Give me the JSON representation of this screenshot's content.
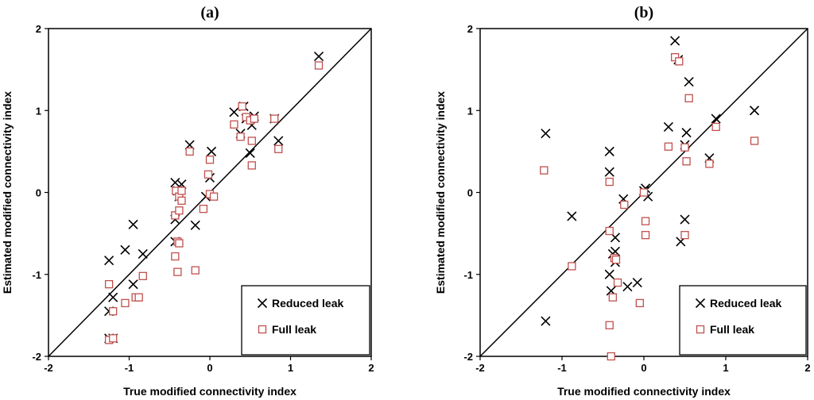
{
  "chart_data": [
    {
      "type": "scatter",
      "panel_label": "(a)",
      "xlabel": "True modified connectivity index",
      "ylabel": "Estimated modified connectivity index",
      "xlim": [
        -2,
        2
      ],
      "ylim": [
        -2,
        2
      ],
      "x_ticks": [
        "-2",
        "-1",
        "0",
        "1",
        "2"
      ],
      "y_ticks": [
        "-2",
        "-1",
        "0",
        "1",
        "2"
      ],
      "grid": false,
      "legend_position": "bottom-right",
      "reference_line": "y = x",
      "series": [
        {
          "name": "Reduced leak",
          "marker": "x",
          "color": "#000000",
          "points": [
            [
              -1.25,
              -1.78
            ],
            [
              -1.2,
              -1.78
            ],
            [
              -1.25,
              -1.45
            ],
            [
              -1.2,
              -1.28
            ],
            [
              -1.25,
              -0.83
            ],
            [
              -0.95,
              -1.12
            ],
            [
              -1.05,
              -0.7
            ],
            [
              -0.95,
              -0.39
            ],
            [
              -0.83,
              -0.75
            ],
            [
              -0.43,
              -0.6
            ],
            [
              -0.43,
              -0.33
            ],
            [
              -0.43,
              0.12
            ],
            [
              -0.4,
              0.02
            ],
            [
              -0.35,
              0.1
            ],
            [
              -0.38,
              -0.05
            ],
            [
              -0.25,
              0.58
            ],
            [
              -0.18,
              -0.4
            ],
            [
              -0.05,
              -0.05
            ],
            [
              0.0,
              0.18
            ],
            [
              0.02,
              0.5
            ],
            [
              0.3,
              0.98
            ],
            [
              0.38,
              0.72
            ],
            [
              0.42,
              1.05
            ],
            [
              0.45,
              0.9
            ],
            [
              0.5,
              0.48
            ],
            [
              0.52,
              0.82
            ],
            [
              0.55,
              0.93
            ],
            [
              0.8,
              0.9
            ],
            [
              0.85,
              0.63
            ],
            [
              1.35,
              1.66
            ]
          ]
        },
        {
          "name": "Full leak",
          "marker": "square",
          "color": "#c0504d",
          "points": [
            [
              -1.25,
              -1.8
            ],
            [
              -1.2,
              -1.78
            ],
            [
              -1.25,
              -1.12
            ],
            [
              -1.2,
              -1.45
            ],
            [
              -1.05,
              -1.35
            ],
            [
              -0.92,
              -1.28
            ],
            [
              -0.88,
              -1.28
            ],
            [
              -0.83,
              -1.02
            ],
            [
              -0.43,
              -0.78
            ],
            [
              -0.4,
              -0.6
            ],
            [
              -0.4,
              -0.97
            ],
            [
              -0.38,
              -0.62
            ],
            [
              -0.43,
              -0.28
            ],
            [
              -0.38,
              -0.22
            ],
            [
              -0.42,
              0.02
            ],
            [
              -0.38,
              -0.05
            ],
            [
              -0.35,
              -0.1
            ],
            [
              -0.35,
              0.02
            ],
            [
              -0.25,
              0.5
            ],
            [
              -0.18,
              -0.95
            ],
            [
              -0.08,
              -0.2
            ],
            [
              -0.02,
              0.22
            ],
            [
              0.0,
              0.4
            ],
            [
              0.0,
              -0.02
            ],
            [
              0.05,
              -0.05
            ],
            [
              0.3,
              0.83
            ],
            [
              0.38,
              0.68
            ],
            [
              0.4,
              1.05
            ],
            [
              0.45,
              0.92
            ],
            [
              0.5,
              0.88
            ],
            [
              0.52,
              0.63
            ],
            [
              0.52,
              0.33
            ],
            [
              0.55,
              0.9
            ],
            [
              0.8,
              0.9
            ],
            [
              0.85,
              0.53
            ],
            [
              1.35,
              1.55
            ]
          ]
        }
      ]
    },
    {
      "type": "scatter",
      "panel_label": "(b)",
      "xlabel": "True modified connectivity index",
      "ylabel": "Estimated modified connectivity index",
      "xlim": [
        -2,
        2
      ],
      "ylim": [
        -2,
        2
      ],
      "x_ticks": [
        "-2",
        "-1",
        "0",
        "1",
        "2"
      ],
      "y_ticks": [
        "-2",
        "-1",
        "0",
        "1",
        "2"
      ],
      "grid": false,
      "legend_position": "bottom-right",
      "reference_line": "y = x",
      "series": [
        {
          "name": "Reduced leak",
          "marker": "x",
          "color": "#000000",
          "points": [
            [
              -1.2,
              0.72
            ],
            [
              -1.2,
              -1.57
            ],
            [
              -0.88,
              -0.29
            ],
            [
              -0.42,
              0.5
            ],
            [
              -0.42,
              0.25
            ],
            [
              -0.42,
              -1.0
            ],
            [
              -0.4,
              -1.2
            ],
            [
              -0.38,
              -0.75
            ],
            [
              -0.35,
              -0.55
            ],
            [
              -0.35,
              -0.72
            ],
            [
              -0.35,
              -0.85
            ],
            [
              -0.25,
              -0.08
            ],
            [
              -0.2,
              -1.15
            ],
            [
              -0.08,
              -1.1
            ],
            [
              0.0,
              0.02
            ],
            [
              0.02,
              0.05
            ],
            [
              0.05,
              -0.05
            ],
            [
              0.3,
              0.8
            ],
            [
              0.38,
              1.85
            ],
            [
              0.42,
              1.62
            ],
            [
              0.45,
              -0.6
            ],
            [
              0.5,
              -0.33
            ],
            [
              0.5,
              0.58
            ],
            [
              0.52,
              0.73
            ],
            [
              0.55,
              1.35
            ],
            [
              0.8,
              0.42
            ],
            [
              0.88,
              0.9
            ],
            [
              1.35,
              1.0
            ]
          ]
        },
        {
          "name": "Full leak",
          "marker": "square",
          "color": "#c0504d",
          "points": [
            [
              -1.22,
              0.27
            ],
            [
              -0.88,
              -0.9
            ],
            [
              -0.42,
              0.13
            ],
            [
              -0.42,
              -0.47
            ],
            [
              -0.42,
              -1.62
            ],
            [
              -0.4,
              -2.0
            ],
            [
              -0.38,
              -1.28
            ],
            [
              -0.36,
              -0.8
            ],
            [
              -0.34,
              -0.82
            ],
            [
              -0.32,
              -1.1
            ],
            [
              -0.24,
              -0.15
            ],
            [
              -0.05,
              -1.35
            ],
            [
              0.0,
              0.0
            ],
            [
              0.02,
              -0.35
            ],
            [
              0.02,
              -0.52
            ],
            [
              0.3,
              0.56
            ],
            [
              0.38,
              1.65
            ],
            [
              0.43,
              1.6
            ],
            [
              0.5,
              -0.52
            ],
            [
              0.5,
              0.55
            ],
            [
              0.52,
              0.38
            ],
            [
              0.55,
              1.15
            ],
            [
              0.8,
              0.35
            ],
            [
              0.88,
              0.8
            ],
            [
              1.35,
              0.63
            ]
          ]
        }
      ]
    }
  ]
}
